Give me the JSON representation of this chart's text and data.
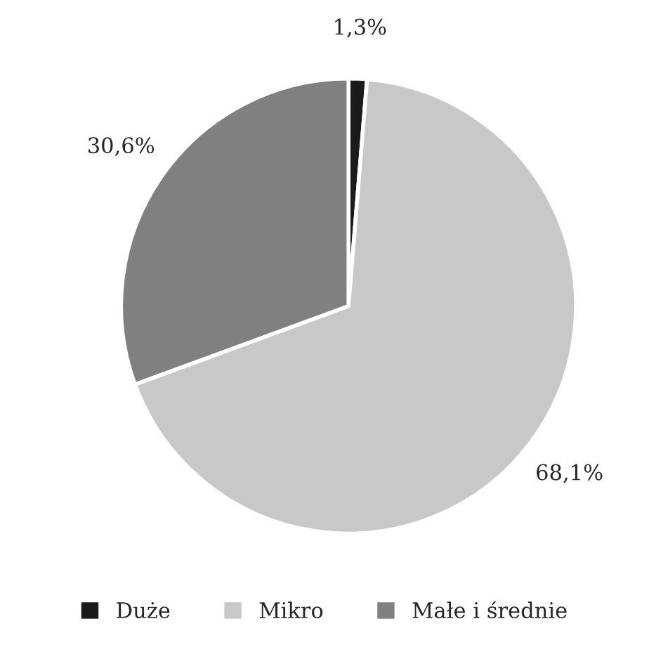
{
  "chart_data": {
    "type": "pie",
    "categories": [
      "Duże",
      "Mikro",
      "Małe i średnie"
    ],
    "values": [
      1.3,
      68.1,
      30.6
    ],
    "colors": [
      "#1a1a1a",
      "#c8c8c8",
      "#808080"
    ],
    "value_labels": [
      "1,3%",
      "68,1%",
      "30,6%"
    ],
    "legend": "bottom"
  }
}
